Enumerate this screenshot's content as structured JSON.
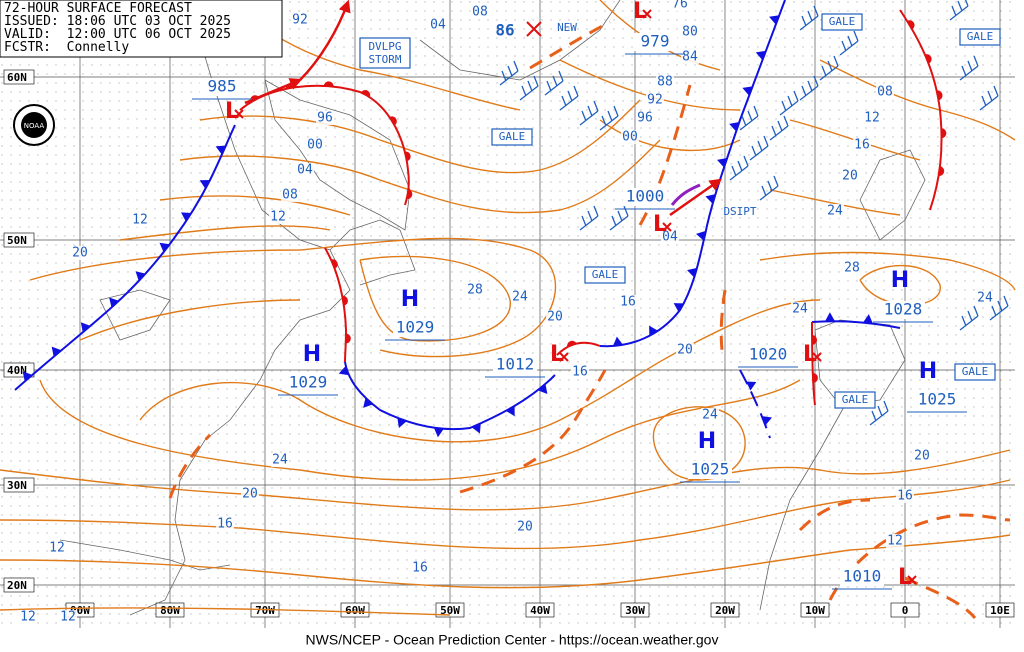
{
  "header": {
    "title": "72-HOUR SURFACE FORECAST",
    "issued": "ISSUED: 18:06 UTC 03 OCT 2025",
    "valid": "VALID:  12:00 UTC 06 OCT 2025",
    "forecaster": "FCSTR:  Connelly"
  },
  "logo": "NOAA",
  "latitude_labels": [
    "60N",
    "50N",
    "40N",
    "30N",
    "20N"
  ],
  "longitude_labels": [
    "90W",
    "80W",
    "70W",
    "60W",
    "50W",
    "40W",
    "30W",
    "20W",
    "10W",
    "0",
    "10E"
  ],
  "pressure_centers": [
    {
      "symbol": "L",
      "pressure": "985"
    },
    {
      "symbol": "L",
      "pressure": "979"
    },
    {
      "symbol": "L",
      "pressure": "1000"
    },
    {
      "symbol": "L",
      "pressure": "1012"
    },
    {
      "symbol": "H",
      "pressure": "1029"
    },
    {
      "symbol": "H",
      "pressure": "1029"
    },
    {
      "symbol": "H",
      "pressure": "1028"
    },
    {
      "symbol": "H",
      "pressure": "1025"
    },
    {
      "symbol": "H",
      "pressure": "1025"
    },
    {
      "symbol": "L",
      "pressure": "1020"
    },
    {
      "symbol": "L",
      "pressure": "1010"
    }
  ],
  "new_low": {
    "pressure": "86",
    "label": "NEW"
  },
  "isobar_labels": [
    "92",
    "04",
    "08",
    "96",
    "00",
    "04",
    "08",
    "12",
    "12",
    "20",
    "28",
    "24",
    "20",
    "16",
    "16",
    "20",
    "24",
    "24",
    "20",
    "16",
    "20",
    "16",
    "12",
    "12",
    "12",
    "76",
    "80",
    "84",
    "88",
    "92",
    "96",
    "00",
    "04",
    "08",
    "12",
    "16",
    "20",
    "24",
    "28",
    "24",
    "24",
    "20",
    "16",
    "12"
  ],
  "annotations": {
    "storm": [
      "DVLPG",
      "STORM"
    ],
    "gale": "GALE",
    "dissipating": "DSIPT"
  },
  "footer": "NWS/NCEP - Ocean Prediction Center - https://ocean.weather.gov"
}
